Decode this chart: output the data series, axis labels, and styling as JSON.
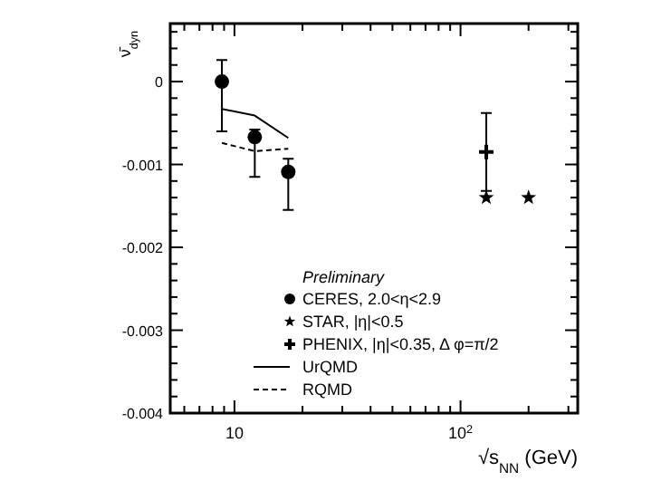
{
  "chart_data": {
    "type": "scatter",
    "xlabel": "√s$_{NN}$ (GeV)",
    "ylabel": "ν̄$_{dyn}$",
    "log": "x",
    "xlim": [
      5.2,
      330
    ],
    "ylim": [
      -0.004,
      0.0007
    ],
    "xticks": [
      {
        "value": 6,
        "label": null
      },
      {
        "value": 7,
        "label": null
      },
      {
        "value": 8,
        "label": null
      },
      {
        "value": 9,
        "label": null
      },
      10,
      {
        "value": 20,
        "label": null
      },
      {
        "value": 30,
        "label": null
      },
      {
        "value": 40,
        "label": null
      },
      {
        "value": 50,
        "label": null
      },
      {
        "value": 60,
        "label": null
      },
      {
        "value": 70,
        "label": null
      },
      {
        "value": 80,
        "label": null
      },
      {
        "value": 90,
        "label": null
      },
      {
        "value": 100,
        "label": "10$^{2}$"
      },
      {
        "value": 200,
        "label": null
      },
      {
        "value": 300,
        "label": null
      }
    ],
    "yticks": [
      -0.004,
      {
        "value": -0.0038,
        "label": null
      },
      {
        "value": -0.0036,
        "label": null
      },
      {
        "value": -0.0034,
        "label": null
      },
      {
        "value": -0.0032,
        "label": null
      },
      -0.003,
      {
        "value": -0.0028,
        "label": null
      },
      {
        "value": -0.0026,
        "label": null
      },
      {
        "value": -0.0024,
        "label": null
      },
      {
        "value": -0.0022,
        "label": null
      },
      -0.002,
      {
        "value": -0.0018,
        "label": null
      },
      {
        "value": -0.0016,
        "label": null
      },
      {
        "value": -0.0014,
        "label": null
      },
      {
        "value": -0.0012,
        "label": null
      },
      -0.001,
      {
        "value": -0.0008,
        "label": null
      },
      {
        "value": -0.0006,
        "label": null
      },
      {
        "value": -0.0004,
        "label": null
      },
      {
        "value": -0.0002,
        "label": null
      },
      0,
      {
        "value": 0.0002,
        "label": null
      },
      {
        "value": 0.0004,
        "label": null
      },
      {
        "value": 0.0006,
        "label": null
      }
    ],
    "grid": false,
    "legend": "bottom",
    "annotations": [
      "Preliminary"
    ],
    "series": [
      {
        "name": "CERES, 2.0<η<2.9",
        "marker": "circle",
        "color": "#000000",
        "x": [
          8.8,
          12.3,
          17.3
        ],
        "values": [
          0,
          -0.00067,
          -0.00109
        ],
        "errors": [
          [
            -0.0006,
            0.00026
          ],
          [
            -0.00115,
            -0.00058
          ],
          [
            -0.00155,
            -0.00093
          ]
        ]
      },
      {
        "name": "STAR, |η|<0.5",
        "marker": "star",
        "color": "#000000",
        "x": [
          130,
          200
        ],
        "values": [
          -0.0014,
          -0.0014
        ]
      },
      {
        "name": "PHENIX, |η|<0.35, Δ φ=π/2",
        "marker": "cross",
        "color": "#000000",
        "x": [
          130
        ],
        "values": [
          -0.00085
        ],
        "errors": [
          0.00047
        ]
      },
      {
        "name": "UrQMD",
        "type": "line",
        "marker": "none",
        "line_style": "solid",
        "color": "#000000",
        "x": [
          8.8,
          12.3,
          17.3
        ],
        "values": [
          -0.00033,
          -0.00041,
          -0.00068
        ]
      },
      {
        "name": "RQMD",
        "type": "line",
        "marker": "none",
        "line_style": "dashed",
        "color": "#000000",
        "x": [
          8.8,
          12.3,
          17.3
        ],
        "values": [
          -0.00074,
          -0.00084,
          -0.00081
        ]
      }
    ]
  }
}
